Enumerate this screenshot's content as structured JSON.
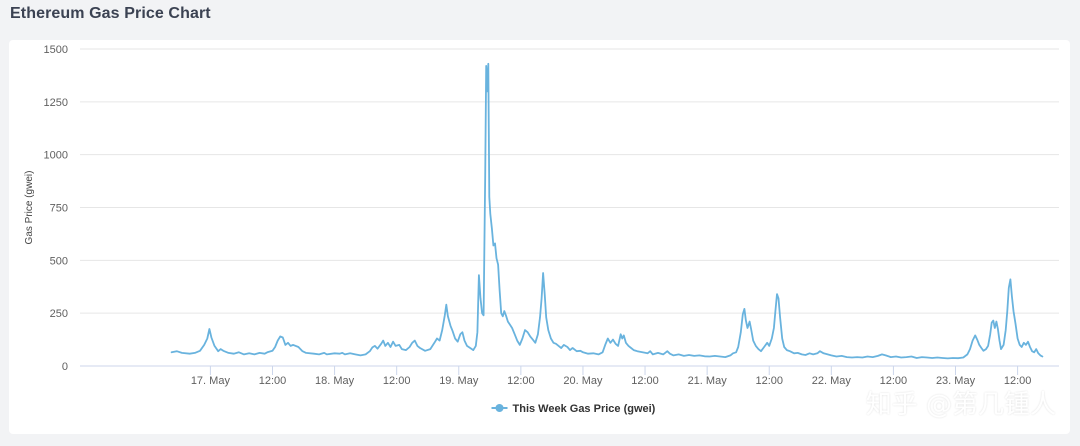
{
  "page": {
    "title": "Ethereum Gas Price Chart"
  },
  "chart_data": {
    "type": "line",
    "title": "",
    "xlabel": "",
    "ylabel": "Gas Price (gwei)",
    "ylim": [
      0,
      1500
    ],
    "y_ticks": [
      0,
      250,
      500,
      750,
      1000,
      1250,
      1500
    ],
    "x_unit": "hours since 16 May 00:00",
    "xlim": [
      -1.2,
      188
    ],
    "x_ticks": [
      {
        "x": 24,
        "label": "17. May"
      },
      {
        "x": 36,
        "label": "12:00"
      },
      {
        "x": 48,
        "label": "18. May"
      },
      {
        "x": 60,
        "label": "12:00"
      },
      {
        "x": 72,
        "label": "19. May"
      },
      {
        "x": 84,
        "label": "12:00"
      },
      {
        "x": 96,
        "label": "20. May"
      },
      {
        "x": 108,
        "label": "12:00"
      },
      {
        "x": 120,
        "label": "21. May"
      },
      {
        "x": 132,
        "label": "12:00"
      },
      {
        "x": 144,
        "label": "22. May"
      },
      {
        "x": 156,
        "label": "12:00"
      },
      {
        "x": 168,
        "label": "23. May"
      },
      {
        "x": 180,
        "label": "12:00"
      }
    ],
    "grid": true,
    "legend_position": "bottom-center",
    "series": [
      {
        "name": "This Week Gas Price (gwei)",
        "color": "#69b3de",
        "points": [
          [
            16.5,
            65
          ],
          [
            17.5,
            70
          ],
          [
            18.5,
            62
          ],
          [
            20,
            58
          ],
          [
            21,
            62
          ],
          [
            22,
            72
          ],
          [
            22.8,
            100
          ],
          [
            23.4,
            130
          ],
          [
            23.8,
            175
          ],
          [
            24.2,
            135
          ],
          [
            24.8,
            95
          ],
          [
            25.5,
            70
          ],
          [
            26,
            80
          ],
          [
            26.5,
            72
          ],
          [
            27.5,
            62
          ],
          [
            28.5,
            58
          ],
          [
            29.5,
            65
          ],
          [
            30.5,
            55
          ],
          [
            31.5,
            60
          ],
          [
            32.5,
            55
          ],
          [
            33.5,
            62
          ],
          [
            34.5,
            58
          ],
          [
            35,
            65
          ],
          [
            36,
            72
          ],
          [
            36.5,
            90
          ],
          [
            37,
            120
          ],
          [
            37.5,
            140
          ],
          [
            38,
            135
          ],
          [
            38.5,
            100
          ],
          [
            39,
            110
          ],
          [
            39.5,
            95
          ],
          [
            40,
            100
          ],
          [
            41,
            90
          ],
          [
            41.8,
            70
          ],
          [
            42.5,
            62
          ],
          [
            44,
            58
          ],
          [
            45,
            55
          ],
          [
            46,
            62
          ],
          [
            46.5,
            55
          ],
          [
            48,
            60
          ],
          [
            49,
            58
          ],
          [
            49.5,
            62
          ],
          [
            50,
            55
          ],
          [
            51,
            60
          ],
          [
            52,
            55
          ],
          [
            53,
            50
          ],
          [
            54,
            55
          ],
          [
            54.8,
            70
          ],
          [
            55.3,
            88
          ],
          [
            55.8,
            95
          ],
          [
            56.3,
            82
          ],
          [
            57,
            105
          ],
          [
            57.4,
            120
          ],
          [
            57.8,
            95
          ],
          [
            58.3,
            110
          ],
          [
            58.8,
            90
          ],
          [
            59.3,
            115
          ],
          [
            59.8,
            95
          ],
          [
            60.5,
            100
          ],
          [
            61,
            80
          ],
          [
            61.8,
            75
          ],
          [
            62.5,
            90
          ],
          [
            63,
            110
          ],
          [
            63.5,
            120
          ],
          [
            64,
            95
          ],
          [
            64.5,
            85
          ],
          [
            65.5,
            72
          ],
          [
            66.5,
            80
          ],
          [
            67.3,
            110
          ],
          [
            67.8,
            130
          ],
          [
            68.3,
            120
          ],
          [
            68.8,
            170
          ],
          [
            69.3,
            240
          ],
          [
            69.6,
            290
          ],
          [
            69.9,
            235
          ],
          [
            70.4,
            190
          ],
          [
            70.8,
            165
          ],
          [
            71.3,
            130
          ],
          [
            71.8,
            115
          ],
          [
            72.3,
            150
          ],
          [
            72.7,
            160
          ],
          [
            73.1,
            120
          ],
          [
            73.6,
            95
          ],
          [
            74.2,
            85
          ],
          [
            74.8,
            75
          ],
          [
            75.3,
            95
          ],
          [
            75.6,
            160
          ],
          [
            75.9,
            430
          ],
          [
            76.2,
            320
          ],
          [
            76.5,
            250
          ],
          [
            76.8,
            240
          ],
          [
            77.1,
            900
          ],
          [
            77.3,
            1420
          ],
          [
            77.5,
            1300
          ],
          [
            77.7,
            1430
          ],
          [
            77.9,
            800
          ],
          [
            78.1,
            720
          ],
          [
            78.4,
            650
          ],
          [
            78.7,
            570
          ],
          [
            79,
            580
          ],
          [
            79.3,
            510
          ],
          [
            79.6,
            480
          ],
          [
            79.9,
            360
          ],
          [
            80.2,
            250
          ],
          [
            80.5,
            235
          ],
          [
            80.8,
            260
          ],
          [
            81.1,
            240
          ],
          [
            81.5,
            210
          ],
          [
            81.9,
            195
          ],
          [
            82.3,
            180
          ],
          [
            82.8,
            150
          ],
          [
            83.3,
            120
          ],
          [
            83.8,
            100
          ],
          [
            84.3,
            130
          ],
          [
            84.8,
            170
          ],
          [
            85.3,
            160
          ],
          [
            85.8,
            140
          ],
          [
            86.3,
            125
          ],
          [
            86.8,
            110
          ],
          [
            87.3,
            150
          ],
          [
            87.7,
            230
          ],
          [
            88,
            320
          ],
          [
            88.3,
            440
          ],
          [
            88.6,
            340
          ],
          [
            88.9,
            230
          ],
          [
            89.3,
            170
          ],
          [
            89.8,
            130
          ],
          [
            90.3,
            110
          ],
          [
            90.8,
            105
          ],
          [
            91.3,
            95
          ],
          [
            91.8,
            85
          ],
          [
            92.3,
            100
          ],
          [
            93,
            90
          ],
          [
            93.5,
            75
          ],
          [
            94,
            85
          ],
          [
            94.8,
            70
          ],
          [
            95.5,
            72
          ],
          [
            96,
            65
          ],
          [
            97,
            58
          ],
          [
            98,
            60
          ],
          [
            99,
            55
          ],
          [
            99.8,
            65
          ],
          [
            100.3,
            100
          ],
          [
            100.8,
            130
          ],
          [
            101.3,
            110
          ],
          [
            101.8,
            125
          ],
          [
            102.3,
            105
          ],
          [
            102.8,
            95
          ],
          [
            103.3,
            150
          ],
          [
            103.6,
            130
          ],
          [
            103.9,
            145
          ],
          [
            104.3,
            110
          ],
          [
            104.8,
            95
          ],
          [
            105.3,
            85
          ],
          [
            105.8,
            75
          ],
          [
            106.5,
            70
          ],
          [
            107.5,
            65
          ],
          [
            108.5,
            60
          ],
          [
            109,
            70
          ],
          [
            109.5,
            55
          ],
          [
            110.5,
            62
          ],
          [
            111.5,
            55
          ],
          [
            112.3,
            70
          ],
          [
            112.8,
            58
          ],
          [
            113.5,
            50
          ],
          [
            114.5,
            55
          ],
          [
            115.5,
            48
          ],
          [
            116.5,
            52
          ],
          [
            117.5,
            48
          ],
          [
            118.5,
            50
          ],
          [
            119.5,
            46
          ],
          [
            120.5,
            45
          ],
          [
            121.5,
            48
          ],
          [
            122.5,
            45
          ],
          [
            123.5,
            42
          ],
          [
            124.5,
            50
          ],
          [
            125,
            60
          ],
          [
            125.6,
            65
          ],
          [
            126,
            90
          ],
          [
            126.5,
            160
          ],
          [
            126.9,
            245
          ],
          [
            127.2,
            270
          ],
          [
            127.5,
            215
          ],
          [
            127.8,
            180
          ],
          [
            128.2,
            210
          ],
          [
            128.5,
            175
          ],
          [
            128.9,
            120
          ],
          [
            129.4,
            95
          ],
          [
            129.9,
            80
          ],
          [
            130.4,
            70
          ],
          [
            131,
            90
          ],
          [
            131.6,
            110
          ],
          [
            132,
            95
          ],
          [
            132.5,
            130
          ],
          [
            132.9,
            180
          ],
          [
            133.2,
            260
          ],
          [
            133.5,
            340
          ],
          [
            133.8,
            320
          ],
          [
            134.1,
            230
          ],
          [
            134.5,
            130
          ],
          [
            134.9,
            90
          ],
          [
            135.4,
            75
          ],
          [
            136,
            70
          ],
          [
            136.8,
            60
          ],
          [
            137.5,
            62
          ],
          [
            138.3,
            55
          ],
          [
            139,
            52
          ],
          [
            139.8,
            60
          ],
          [
            140.5,
            55
          ],
          [
            141.3,
            60
          ],
          [
            141.8,
            70
          ],
          [
            142.5,
            60
          ],
          [
            143.3,
            55
          ],
          [
            144,
            50
          ],
          [
            145,
            45
          ],
          [
            146,
            48
          ],
          [
            147,
            42
          ],
          [
            148,
            40
          ],
          [
            149,
            42
          ],
          [
            150,
            40
          ],
          [
            151,
            45
          ],
          [
            152,
            42
          ],
          [
            153,
            48
          ],
          [
            153.8,
            55
          ],
          [
            154.5,
            50
          ],
          [
            155.5,
            42
          ],
          [
            156.5,
            45
          ],
          [
            157.5,
            40
          ],
          [
            158.5,
            42
          ],
          [
            159.5,
            45
          ],
          [
            160.5,
            38
          ],
          [
            161.5,
            42
          ],
          [
            162.5,
            40
          ],
          [
            163.5,
            38
          ],
          [
            164.5,
            40
          ],
          [
            165.5,
            38
          ],
          [
            166.5,
            36
          ],
          [
            167.5,
            38
          ],
          [
            168.5,
            37
          ],
          [
            169.5,
            40
          ],
          [
            170.3,
            55
          ],
          [
            170.8,
            80
          ],
          [
            171.3,
            120
          ],
          [
            171.8,
            145
          ],
          [
            172.2,
            125
          ],
          [
            172.6,
            100
          ],
          [
            173,
            85
          ],
          [
            173.4,
            72
          ],
          [
            173.9,
            80
          ],
          [
            174.3,
            95
          ],
          [
            174.7,
            150
          ],
          [
            175,
            205
          ],
          [
            175.3,
            215
          ],
          [
            175.6,
            180
          ],
          [
            175.9,
            210
          ],
          [
            176.2,
            175
          ],
          [
            176.5,
            120
          ],
          [
            176.8,
            80
          ],
          [
            177.3,
            100
          ],
          [
            177.7,
            170
          ],
          [
            178,
            260
          ],
          [
            178.3,
            370
          ],
          [
            178.6,
            410
          ],
          [
            178.9,
            330
          ],
          [
            179.2,
            260
          ],
          [
            179.6,
            200
          ],
          [
            180,
            130
          ],
          [
            180.4,
            100
          ],
          [
            180.8,
            90
          ],
          [
            181.2,
            110
          ],
          [
            181.6,
            100
          ],
          [
            182,
            115
          ],
          [
            182.4,
            90
          ],
          [
            182.8,
            70
          ],
          [
            183.2,
            65
          ],
          [
            183.6,
            80
          ],
          [
            184,
            60
          ],
          [
            184.4,
            50
          ],
          [
            184.8,
            45
          ]
        ]
      }
    ]
  },
  "watermark": {
    "text": "知乎 @第几锺人"
  }
}
